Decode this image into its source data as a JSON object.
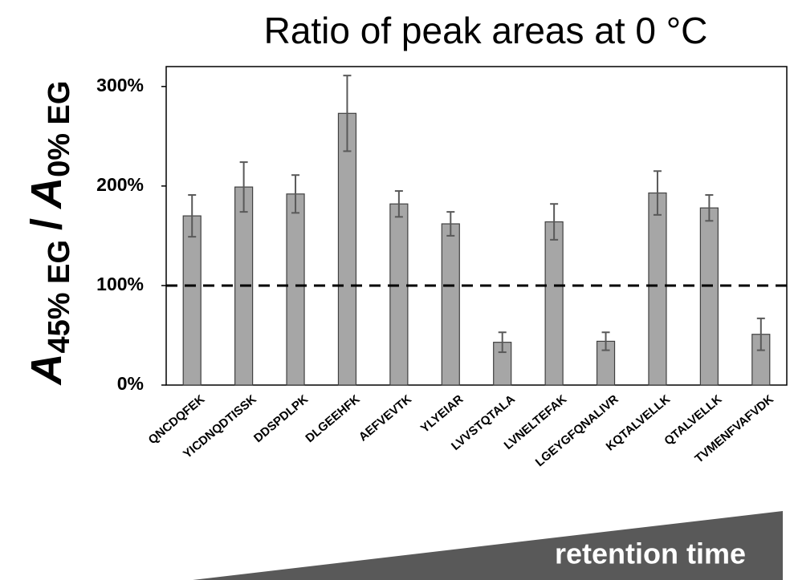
{
  "chart_data": {
    "type": "bar",
    "title": "Ratio of peak areas at 0 °C",
    "y_label": {
      "numerator": {
        "symbol": "A",
        "subscript": "45% EG"
      },
      "separator": "/",
      "denominator": {
        "symbol": "A",
        "subscript": "0% EG"
      }
    },
    "categories": [
      "QNCDQFEK",
      "YICDNQDTISSK",
      "DDSPDLPK",
      "DLGEEHFK",
      "AEFVEVTK",
      "YLYEIAR",
      "LVVSTQTALA",
      "LVNELTEFAK",
      "LGEYGFQNALIVR",
      "KQTALVELLK",
      "QTALVELLK",
      "TVMENFVAFVDK"
    ],
    "values": [
      170,
      199,
      192,
      273,
      182,
      162,
      43,
      164,
      44,
      193,
      178,
      51
    ],
    "errors": [
      21,
      25,
      19,
      38,
      13,
      12,
      10,
      18,
      9,
      22,
      13,
      16
    ],
    "color": "#a6a6a6",
    "ylim": [
      0,
      320
    ],
    "yticks": [
      {
        "value": 0,
        "label": "0%"
      },
      {
        "value": 100,
        "label": "100%"
      },
      {
        "value": 200,
        "label": "200%"
      },
      {
        "value": 300,
        "label": "300%"
      }
    ],
    "reference_line": 100,
    "annotation": "retention time"
  }
}
